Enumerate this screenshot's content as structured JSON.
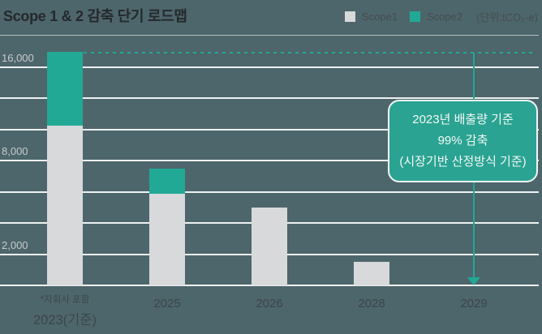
{
  "header": {
    "title": "Scope 1 & 2 감축 단기 로드맵",
    "legend": [
      {
        "label": "Scope1",
        "color": "#d7d9da"
      },
      {
        "label": "Scope2",
        "color": "#22a996"
      }
    ],
    "unit_label": "(단위:tCO₂-e)"
  },
  "chart_data": {
    "type": "bar",
    "stacked": true,
    "title": "Scope 1 & 2 감축 단기 로드맵",
    "unit": "tCO₂-e",
    "categories": [
      "2023(기준)",
      "2025",
      "2026",
      "2028",
      "2029"
    ],
    "category_note": {
      "index": 0,
      "text": "*자회사 포함"
    },
    "series": [
      {
        "name": "Scope1",
        "color": "#d7d9da",
        "values": [
          11000,
          5900,
          5000,
          1500,
          0
        ]
      },
      {
        "name": "Scope2",
        "color": "#22a996",
        "values": [
          6300,
          1600,
          0,
          0,
          0
        ]
      }
    ],
    "axis_ticks": [
      {
        "value": 16000,
        "label": "16,000"
      },
      {
        "value": 8000,
        "label": "8,000"
      },
      {
        "value": 2000,
        "label": "2,000"
      }
    ],
    "gridline_values": [
      16000,
      13333,
      10667,
      8000,
      6000,
      4000,
      2000,
      0
    ],
    "axis_note": "y-axis visually compressed above 8,000",
    "grid": true,
    "legend_position": "top-right",
    "annotation": {
      "reference_value": 17300,
      "target_category": "2029",
      "accent_color": "#1fa995",
      "box_color": "#2aa392",
      "callout_lines": [
        "2023년 배출량 기준",
        "99% 감축",
        "(시장기반 산정방식 기준)"
      ]
    }
  }
}
